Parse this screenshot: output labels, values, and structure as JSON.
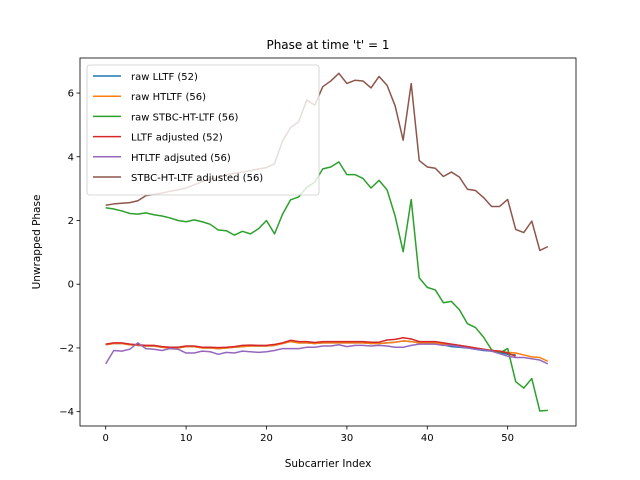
{
  "chart_data": {
    "type": "line",
    "title": "Phase at time 't' = 1",
    "xlabel": "Subcarrier Index",
    "ylabel": "Unwrapped Phase",
    "xlim": [
      -3.2,
      58.5
    ],
    "ylim": [
      -4.45,
      7.1
    ],
    "xticks": [
      0,
      10,
      20,
      30,
      40,
      50
    ],
    "yticks": [
      -4,
      -2,
      0,
      2,
      4,
      6
    ],
    "grid": false,
    "legend_position": "upper-left",
    "series": [
      {
        "name": "raw LLTF (52)",
        "color": "#1f77b4",
        "x": [
          0,
          1,
          2,
          3,
          4,
          5,
          6,
          7,
          8,
          9,
          10,
          11,
          12,
          13,
          14,
          15,
          16,
          17,
          18,
          19,
          20,
          21,
          22,
          23,
          24,
          25,
          26,
          27,
          28,
          29,
          30,
          31,
          32,
          33,
          34,
          35,
          36,
          37,
          38,
          39,
          40,
          41,
          42,
          43,
          44,
          45,
          46,
          47,
          48,
          49,
          50,
          51
        ],
        "values": [
          -1.9,
          -1.86,
          -1.86,
          -1.9,
          -1.92,
          -1.94,
          -1.94,
          -1.98,
          -2.0,
          -2.0,
          -1.96,
          -1.96,
          -2.0,
          -2.0,
          -2.02,
          -2.0,
          -1.98,
          -1.96,
          -1.94,
          -1.94,
          -1.94,
          -1.92,
          -1.86,
          -1.8,
          -1.84,
          -1.84,
          -1.86,
          -1.84,
          -1.84,
          -1.84,
          -1.84,
          -1.84,
          -1.84,
          -1.86,
          -1.86,
          -1.84,
          -1.82,
          -1.78,
          -1.8,
          -1.84,
          -1.84,
          -1.84,
          -1.9,
          -1.96,
          -1.98,
          -2.0,
          -2.04,
          -2.08,
          -2.1,
          -2.14,
          -2.2,
          -2.22
        ]
      },
      {
        "name": "raw HTLTF (56)",
        "color": "#ff7f0e",
        "x": [
          0,
          1,
          2,
          3,
          4,
          5,
          6,
          7,
          8,
          9,
          10,
          11,
          12,
          13,
          14,
          15,
          16,
          17,
          18,
          19,
          20,
          21,
          22,
          23,
          24,
          25,
          26,
          27,
          28,
          29,
          30,
          31,
          32,
          33,
          34,
          35,
          36,
          37,
          38,
          39,
          40,
          41,
          42,
          43,
          44,
          45,
          46,
          47,
          48,
          49,
          50,
          51,
          52,
          53,
          54,
          55
        ],
        "values": [
          -1.9,
          -1.86,
          -1.86,
          -1.9,
          -1.92,
          -1.94,
          -1.94,
          -1.98,
          -2.0,
          -2.0,
          -1.96,
          -1.96,
          -2.0,
          -2.0,
          -2.02,
          -2.0,
          -1.98,
          -1.96,
          -1.94,
          -1.94,
          -1.94,
          -1.92,
          -1.86,
          -1.8,
          -1.84,
          -1.84,
          -1.86,
          -1.84,
          -1.84,
          -1.84,
          -1.84,
          -1.84,
          -1.84,
          -1.86,
          -1.86,
          -1.84,
          -1.82,
          -1.78,
          -1.8,
          -1.84,
          -1.84,
          -1.84,
          -1.88,
          -1.9,
          -1.92,
          -1.96,
          -2.0,
          -2.04,
          -2.08,
          -2.1,
          -2.14,
          -2.16,
          -2.22,
          -2.28,
          -2.3,
          -2.42
        ]
      },
      {
        "name": "raw STBC-HT-LTF (56)",
        "color": "#2ca02c",
        "x": [
          0,
          1,
          2,
          3,
          4,
          5,
          6,
          7,
          8,
          9,
          10,
          11,
          12,
          13,
          14,
          15,
          16,
          17,
          18,
          19,
          20,
          21,
          22,
          23,
          24,
          25,
          26,
          27,
          28,
          29,
          30,
          31,
          32,
          33,
          34,
          35,
          36,
          37,
          38,
          39,
          40,
          41,
          42,
          43,
          44,
          45,
          46,
          47,
          48,
          49,
          50,
          51,
          52,
          53,
          54,
          55
        ],
        "values": [
          2.4,
          2.36,
          2.3,
          2.22,
          2.2,
          2.24,
          2.18,
          2.14,
          2.08,
          2.0,
          1.96,
          2.02,
          1.96,
          1.88,
          1.7,
          1.68,
          1.54,
          1.66,
          1.58,
          1.74,
          2.0,
          1.58,
          2.2,
          2.65,
          2.74,
          3.04,
          3.2,
          3.62,
          3.68,
          3.84,
          3.44,
          3.44,
          3.32,
          3.02,
          3.26,
          2.96,
          2.14,
          1.02,
          2.66,
          0.2,
          -0.1,
          -0.18,
          -0.58,
          -0.54,
          -0.8,
          -1.24,
          -1.36,
          -1.66,
          -2.06,
          -2.16,
          -2.02,
          -3.06,
          -3.26,
          -2.96,
          -3.98,
          -3.96
        ]
      },
      {
        "name": "LLTF adjusted (52)",
        "color": "#d62728",
        "x": [
          0,
          1,
          2,
          3,
          4,
          5,
          6,
          7,
          8,
          9,
          10,
          11,
          12,
          13,
          14,
          15,
          16,
          17,
          18,
          19,
          20,
          21,
          22,
          23,
          24,
          25,
          26,
          27,
          28,
          29,
          30,
          31,
          32,
          33,
          34,
          35,
          36,
          37,
          38,
          39,
          40,
          41,
          42,
          43,
          44,
          45,
          46,
          47,
          48,
          49,
          50,
          51
        ],
        "values": [
          -1.88,
          -1.84,
          -1.84,
          -1.88,
          -1.9,
          -1.92,
          -1.92,
          -1.96,
          -1.98,
          -1.98,
          -1.94,
          -1.94,
          -1.98,
          -1.98,
          -1.99,
          -1.98,
          -1.96,
          -1.92,
          -1.91,
          -1.92,
          -1.92,
          -1.89,
          -1.84,
          -1.76,
          -1.8,
          -1.8,
          -1.83,
          -1.8,
          -1.8,
          -1.8,
          -1.8,
          -1.8,
          -1.8,
          -1.82,
          -1.82,
          -1.75,
          -1.73,
          -1.68,
          -1.72,
          -1.8,
          -1.8,
          -1.8,
          -1.84,
          -1.88,
          -1.92,
          -1.96,
          -2.0,
          -2.04,
          -2.08,
          -2.1,
          -2.16,
          -2.26
        ]
      },
      {
        "name": "HTLTF adjsuted (56)",
        "color": "#9467bd",
        "x": [
          0,
          1,
          2,
          3,
          4,
          5,
          6,
          7,
          8,
          9,
          10,
          11,
          12,
          13,
          14,
          15,
          16,
          17,
          18,
          19,
          20,
          21,
          22,
          23,
          24,
          25,
          26,
          27,
          28,
          29,
          30,
          31,
          32,
          33,
          34,
          35,
          36,
          37,
          38,
          39,
          40,
          41,
          42,
          43,
          44,
          45,
          46,
          47,
          48,
          49,
          50,
          51,
          52,
          53,
          54,
          55
        ],
        "values": [
          -2.5,
          -2.08,
          -2.1,
          -2.04,
          -1.84,
          -2.02,
          -2.04,
          -2.08,
          -2.02,
          -2.04,
          -2.16,
          -2.16,
          -2.1,
          -2.12,
          -2.2,
          -2.14,
          -2.16,
          -2.1,
          -2.12,
          -2.14,
          -2.12,
          -2.08,
          -2.02,
          -2.02,
          -2.02,
          -1.98,
          -1.98,
          -1.94,
          -1.94,
          -1.9,
          -1.96,
          -1.92,
          -1.92,
          -1.94,
          -1.92,
          -1.94,
          -1.98,
          -1.98,
          -1.92,
          -1.88,
          -1.88,
          -1.88,
          -1.92,
          -1.92,
          -1.96,
          -2.0,
          -2.04,
          -2.06,
          -2.1,
          -2.18,
          -2.26,
          -2.3,
          -2.3,
          -2.34,
          -2.38,
          -2.5
        ]
      },
      {
        "name": "STBC-HT-LTF adjusted (56)",
        "color": "#8c564b",
        "x": [
          0,
          1,
          2,
          3,
          4,
          5,
          6,
          7,
          8,
          9,
          10,
          11,
          12,
          13,
          14,
          15,
          16,
          17,
          18,
          19,
          20,
          21,
          22,
          23,
          24,
          25,
          26,
          27,
          28,
          29,
          30,
          31,
          32,
          33,
          34,
          35,
          36,
          37,
          38,
          39,
          40,
          41,
          42,
          43,
          44,
          45,
          46,
          47,
          48,
          49,
          50,
          51,
          52,
          53,
          54,
          55
        ],
        "values": [
          2.48,
          2.52,
          2.54,
          2.56,
          2.62,
          2.78,
          2.82,
          2.86,
          2.92,
          2.96,
          3.02,
          3.12,
          3.22,
          3.3,
          3.34,
          3.44,
          3.48,
          3.52,
          3.56,
          3.62,
          3.66,
          3.78,
          4.5,
          4.92,
          5.1,
          5.78,
          5.62,
          6.2,
          6.38,
          6.62,
          6.3,
          6.4,
          6.38,
          6.16,
          6.52,
          6.24,
          5.6,
          4.52,
          6.3,
          3.88,
          3.68,
          3.64,
          3.38,
          3.52,
          3.36,
          2.98,
          2.94,
          2.72,
          2.44,
          2.44,
          2.66,
          1.72,
          1.62,
          1.98,
          1.06,
          1.18
        ]
      }
    ]
  }
}
